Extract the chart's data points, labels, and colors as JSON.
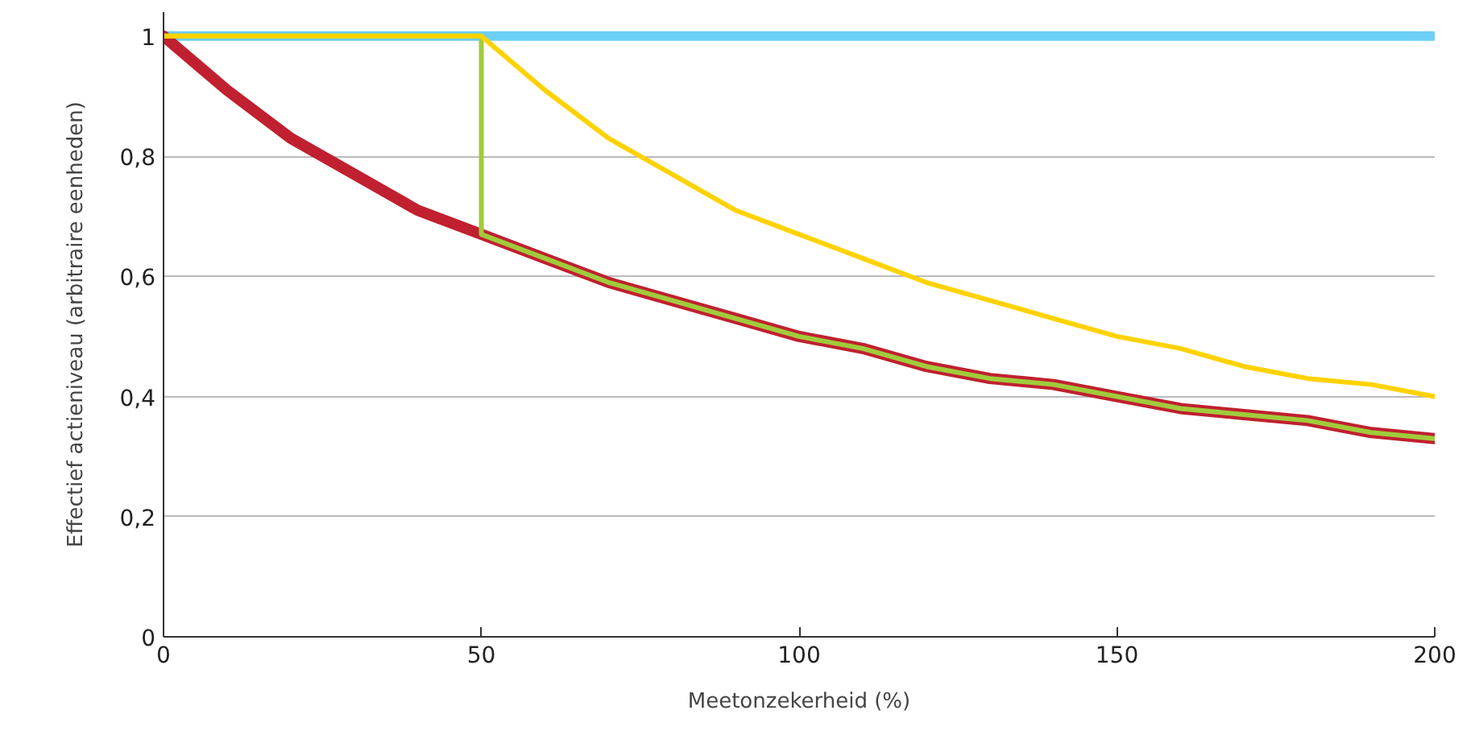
{
  "chart_data": {
    "type": "line",
    "xlabel": "Meetonzekerheid (%)",
    "ylabel": "Effectief actieniveau (arbitraire eenheden)",
    "xlim": [
      0,
      200
    ],
    "xticks": [
      0,
      50,
      100,
      150,
      200
    ],
    "ylim": [
      0,
      1.04
    ],
    "yticks": [
      0,
      {
        "value": 0.2,
        "label": "0,2"
      },
      {
        "value": 0.4,
        "label": "0,4"
      },
      {
        "value": 0.6,
        "label": "0,6"
      },
      {
        "value": 0.8,
        "label": "0,8"
      },
      1
    ],
    "grid": "y",
    "marker": "none",
    "line_style": "solid",
    "series": [
      {
        "color": "#6dcff6",
        "x": [
          0,
          200
        ],
        "values": [
          1,
          1
        ]
      },
      {
        "color": "#c0202f",
        "x": [
          0,
          10,
          20,
          30,
          40,
          50,
          60,
          70,
          80,
          90,
          100,
          110,
          120,
          130,
          140,
          150,
          160,
          170,
          180,
          190,
          200
        ],
        "values": [
          1,
          0.91,
          0.83,
          0.77,
          0.71,
          0.67,
          0.63,
          0.59,
          0.56,
          0.53,
          0.5,
          0.48,
          0.45,
          0.43,
          0.42,
          0.4,
          0.38,
          0.37,
          0.36,
          0.34,
          0.33
        ]
      },
      {
        "color": "#9fcc3b",
        "x": [
          0,
          50,
          50,
          60,
          70,
          80,
          90,
          100,
          110,
          120,
          130,
          140,
          150,
          160,
          170,
          180,
          190,
          200
        ],
        "values": [
          1,
          1,
          0.67,
          0.63,
          0.59,
          0.56,
          0.53,
          0.5,
          0.48,
          0.45,
          0.43,
          0.42,
          0.4,
          0.38,
          0.37,
          0.36,
          0.34,
          0.33
        ]
      },
      {
        "color": "#ffd200",
        "x": [
          0,
          50,
          60,
          70,
          80,
          90,
          100,
          110,
          120,
          130,
          140,
          150,
          160,
          170,
          180,
          190,
          200
        ],
        "values": [
          1,
          1,
          0.91,
          0.83,
          0.77,
          0.71,
          0.67,
          0.63,
          0.59,
          0.56,
          0.53,
          0.5,
          0.48,
          0.45,
          0.43,
          0.42,
          0.4
        ]
      }
    ]
  }
}
